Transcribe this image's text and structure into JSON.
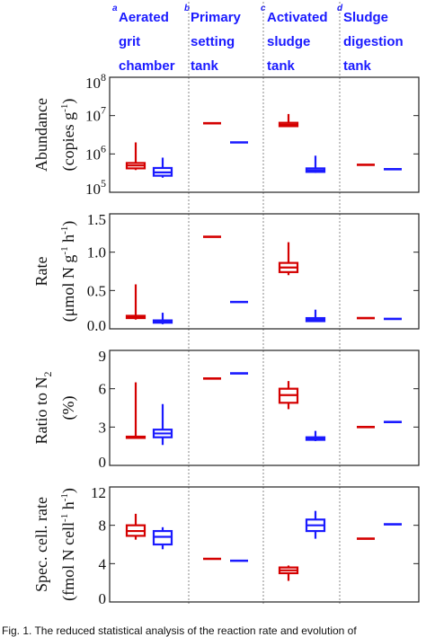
{
  "figure": {
    "columns": [
      {
        "letter": "a",
        "lines": [
          "Aerated",
          "grit",
          "chamber"
        ]
      },
      {
        "letter": "b",
        "lines": [
          "Primary",
          "setting",
          "tank"
        ]
      },
      {
        "letter": "c",
        "lines": [
          "Activated",
          "sludge",
          "tank"
        ]
      },
      {
        "letter": "d",
        "lines": [
          "Sludge",
          "digestion",
          "tank"
        ]
      }
    ],
    "caption": "Fig. 1. The reduced statistical analysis of the reaction rate and evolution of"
  },
  "colors": {
    "series_a": "#d40000",
    "series_b": "#1a1aff",
    "divider": "#888888",
    "frame": "#222222"
  },
  "chart_data": [
    {
      "type": "box",
      "scale": "log",
      "ylabel": [
        "Abundance",
        "(copies g",
        "-1",
        ")"
      ],
      "ylim": [
        100000,
        100000000
      ],
      "ticks": [
        {
          "value": 100000,
          "base": "10",
          "exp": "5"
        },
        {
          "value": 1000000,
          "base": "10",
          "exp": "6"
        },
        {
          "value": 10000000,
          "base": "10",
          "exp": "7"
        },
        {
          "value": 100000000,
          "base": "10",
          "exp": "8"
        }
      ],
      "series": [
        {
          "color_key": "series_a",
          "boxes": [
            {
              "group": 0,
              "min": 380000,
              "q1": 420000,
              "median": 500000,
              "q3": 580000,
              "max": 2000000
            },
            {
              "group": 1,
              "min": 6300000,
              "q1": 6300000,
              "median": 6300000,
              "q3": 6300000,
              "max": 6300000
            },
            {
              "group": 2,
              "min": 5000000,
              "q1": 5300000,
              "median": 5800000,
              "q3": 6500000,
              "max": 11000000
            },
            {
              "group": 3,
              "min": 520000,
              "q1": 520000,
              "median": 520000,
              "q3": 520000,
              "max": 520000
            }
          ]
        },
        {
          "color_key": "series_b",
          "boxes": [
            {
              "group": 0,
              "min": 240000,
              "q1": 270000,
              "median": 330000,
              "q3": 430000,
              "max": 800000
            },
            {
              "group": 1,
              "min": 2000000,
              "q1": 2000000,
              "median": 2000000,
              "q3": 2000000,
              "max": 2000000
            },
            {
              "group": 2,
              "min": 320000,
              "q1": 340000,
              "median": 370000,
              "q3": 420000,
              "max": 900000
            },
            {
              "group": 3,
              "min": 400000,
              "q1": 400000,
              "median": 400000,
              "q3": 400000,
              "max": 400000
            }
          ]
        }
      ]
    },
    {
      "type": "box",
      "scale": "linear",
      "ylabel": [
        "Rate",
        "(μmol N g",
        "-1",
        " h",
        "-1",
        ")"
      ],
      "ylim": [
        0,
        1.5
      ],
      "ticks": [
        {
          "value": 0,
          "label": "0.0"
        },
        {
          "value": 0.5,
          "label": "0.5"
        },
        {
          "value": 1.0,
          "label": "1.0"
        },
        {
          "value": 1.5,
          "label": "1.5"
        }
      ],
      "series": [
        {
          "color_key": "series_a",
          "boxes": [
            {
              "group": 0,
              "min": 0.12,
              "q1": 0.14,
              "median": 0.15,
              "q3": 0.17,
              "max": 0.58
            },
            {
              "group": 1,
              "min": 1.2,
              "q1": 1.2,
              "median": 1.2,
              "q3": 1.2,
              "max": 1.2
            },
            {
              "group": 2,
              "min": 0.7,
              "q1": 0.74,
              "median": 0.8,
              "q3": 0.86,
              "max": 1.13
            },
            {
              "group": 3,
              "min": 0.14,
              "q1": 0.14,
              "median": 0.14,
              "q3": 0.14,
              "max": 0.14
            }
          ]
        },
        {
          "color_key": "series_b",
          "boxes": [
            {
              "group": 0,
              "min": 0.06,
              "q1": 0.08,
              "median": 0.09,
              "q3": 0.11,
              "max": 0.21
            },
            {
              "group": 1,
              "min": 0.35,
              "q1": 0.35,
              "median": 0.35,
              "q3": 0.35,
              "max": 0.35
            },
            {
              "group": 2,
              "min": 0.09,
              "q1": 0.1,
              "median": 0.12,
              "q3": 0.14,
              "max": 0.25
            },
            {
              "group": 3,
              "min": 0.13,
              "q1": 0.13,
              "median": 0.13,
              "q3": 0.13,
              "max": 0.13
            }
          ]
        }
      ]
    },
    {
      "type": "box",
      "scale": "linear",
      "ylabel": [
        "Ratio to N",
        "2",
        "(%)"
      ],
      "ylim": [
        0,
        9
      ],
      "ticks": [
        {
          "value": 0,
          "label": "0"
        },
        {
          "value": 3,
          "label": "3"
        },
        {
          "value": 6,
          "label": "6"
        },
        {
          "value": 9,
          "label": "9"
        }
      ],
      "series": [
        {
          "color_key": "series_a",
          "boxes": [
            {
              "group": 0,
              "min": 2.1,
              "q1": 2.15,
              "median": 2.2,
              "q3": 2.25,
              "max": 6.5
            },
            {
              "group": 1,
              "min": 6.8,
              "q1": 6.8,
              "median": 6.8,
              "q3": 6.8,
              "max": 6.8
            },
            {
              "group": 2,
              "min": 4.4,
              "q1": 4.9,
              "median": 5.5,
              "q3": 6.0,
              "max": 6.6
            },
            {
              "group": 3,
              "min": 3.0,
              "q1": 3.0,
              "median": 3.0,
              "q3": 3.0,
              "max": 3.0
            }
          ]
        },
        {
          "color_key": "series_b",
          "boxes": [
            {
              "group": 0,
              "min": 1.6,
              "q1": 2.2,
              "median": 2.5,
              "q3": 2.8,
              "max": 4.8
            },
            {
              "group": 1,
              "min": 7.2,
              "q1": 7.2,
              "median": 7.2,
              "q3": 7.2,
              "max": 7.2
            },
            {
              "group": 2,
              "min": 1.9,
              "q1": 2.0,
              "median": 2.1,
              "q3": 2.2,
              "max": 2.7
            },
            {
              "group": 3,
              "min": 3.4,
              "q1": 3.4,
              "median": 3.4,
              "q3": 3.4,
              "max": 3.4
            }
          ]
        }
      ]
    },
    {
      "type": "box",
      "scale": "linear",
      "ylabel": [
        "Spec. cell. rate",
        "(fmol N cell",
        "-1",
        " h",
        "-1",
        ")"
      ],
      "ylim": [
        0,
        12
      ],
      "ticks": [
        {
          "value": 0,
          "label": "0"
        },
        {
          "value": 4,
          "label": "4"
        },
        {
          "value": 8,
          "label": "8"
        },
        {
          "value": 12,
          "label": "12"
        }
      ],
      "series": [
        {
          "color_key": "series_a",
          "boxes": [
            {
              "group": 0,
              "min": 6.5,
              "q1": 6.9,
              "median": 7.4,
              "q3": 8.0,
              "max": 9.2
            },
            {
              "group": 1,
              "min": 4.5,
              "q1": 4.5,
              "median": 4.5,
              "q3": 4.5,
              "max": 4.5
            },
            {
              "group": 2,
              "min": 2.2,
              "q1": 3.0,
              "median": 3.3,
              "q3": 3.6,
              "max": 3.8
            },
            {
              "group": 3,
              "min": 6.6,
              "q1": 6.6,
              "median": 6.6,
              "q3": 6.6,
              "max": 6.6
            }
          ]
        },
        {
          "color_key": "series_b",
          "boxes": [
            {
              "group": 0,
              "min": 5.5,
              "q1": 6.0,
              "median": 6.8,
              "q3": 7.4,
              "max": 7.8
            },
            {
              "group": 1,
              "min": 4.3,
              "q1": 4.3,
              "median": 4.3,
              "q3": 4.3,
              "max": 4.3
            },
            {
              "group": 2,
              "min": 6.6,
              "q1": 7.4,
              "median": 8.0,
              "q3": 8.6,
              "max": 9.5
            },
            {
              "group": 3,
              "min": 8.1,
              "q1": 8.1,
              "median": 8.1,
              "q3": 8.1,
              "max": 8.1
            }
          ]
        }
      ]
    }
  ]
}
